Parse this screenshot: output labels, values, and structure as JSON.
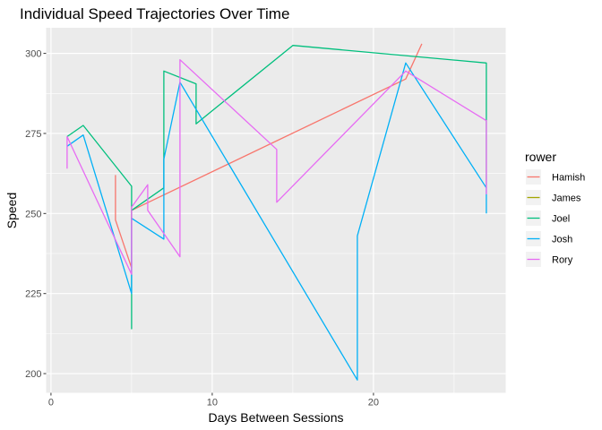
{
  "chart_data": {
    "type": "line",
    "title": "Individual Speed Trajectories Over Time",
    "xlabel": "Days Between Sessions",
    "ylabel": "Speed",
    "xlim": [
      -0.3,
      28.2
    ],
    "ylim": [
      194,
      308
    ],
    "xticks": [
      0,
      10,
      20
    ],
    "yticks": [
      200,
      225,
      250,
      275,
      300
    ],
    "grid": true,
    "legend": {
      "title": "rower",
      "position": "right"
    },
    "series": [
      {
        "name": "Hamish",
        "color": "#F8766D",
        "x": [
          4,
          4,
          5,
          5,
          22,
          23
        ],
        "y": [
          262,
          248,
          233,
          251,
          292,
          303
        ]
      },
      {
        "name": "James",
        "color": "#A3A500",
        "x": [],
        "y": []
      },
      {
        "name": "Joel",
        "color": "#00BF7D",
        "x": [
          1,
          2,
          5,
          5,
          5,
          7,
          7,
          9,
          9,
          15,
          27,
          27
        ],
        "y": [
          274,
          277.5,
          258.5,
          214,
          251,
          258,
          294.5,
          290.5,
          278,
          302.5,
          297,
          258
        ]
      },
      {
        "name": "Josh",
        "color": "#00B0F6",
        "x": [
          1,
          2,
          5,
          5,
          7,
          7,
          8,
          19,
          19,
          22,
          27,
          27
        ],
        "y": [
          271,
          274.5,
          225,
          248.5,
          242,
          267,
          291,
          198,
          243,
          297,
          258,
          250
        ]
      },
      {
        "name": "Rory",
        "color": "#E76BF3",
        "x": [
          1,
          1,
          5,
          5,
          6,
          6,
          8,
          8,
          14,
          14,
          22,
          27,
          27
        ],
        "y": [
          264,
          274,
          231,
          252,
          259,
          251,
          236.5,
          298,
          270,
          253.5,
          294.5,
          279,
          256
        ]
      }
    ]
  }
}
